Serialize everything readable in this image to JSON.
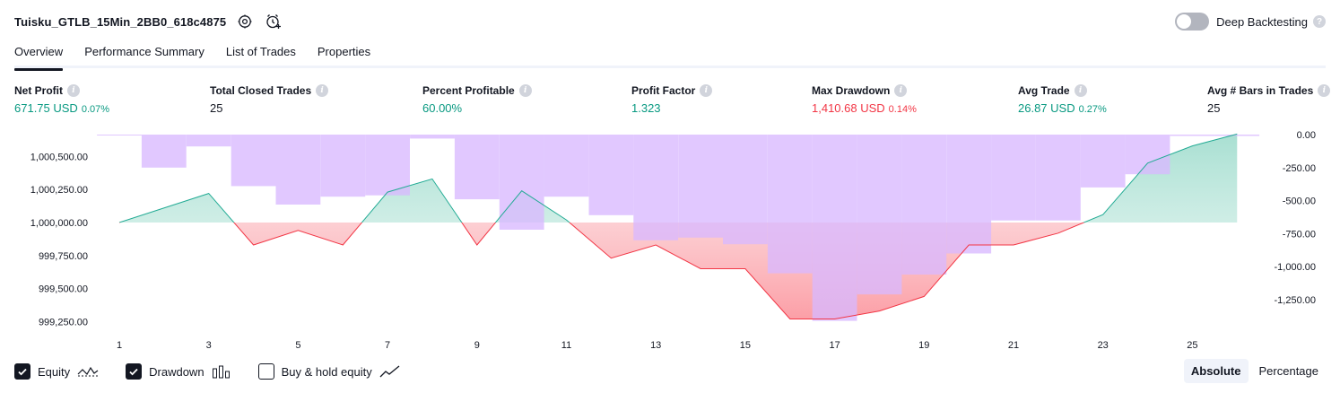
{
  "header": {
    "title": "Tuisku_GTLB_15Min_2BB0_618c4875",
    "deep_backtesting_label": "Deep Backtesting",
    "help_glyph": "?"
  },
  "tabs": [
    {
      "label": "Overview",
      "active": true
    },
    {
      "label": "Performance Summary",
      "active": false
    },
    {
      "label": "List of Trades",
      "active": false
    },
    {
      "label": "Properties",
      "active": false
    }
  ],
  "metrics": [
    {
      "label": "Net Profit",
      "value": "671.75 USD",
      "sub": "0.07%",
      "tone": "pos"
    },
    {
      "label": "Total Closed Trades",
      "value": "25",
      "sub": "",
      "tone": "neu"
    },
    {
      "label": "Percent Profitable",
      "value": "60.00%",
      "sub": "",
      "tone": "pos"
    },
    {
      "label": "Profit Factor",
      "value": "1.323",
      "sub": "",
      "tone": "pos"
    },
    {
      "label": "Max Drawdown",
      "value": "1,410.68 USD",
      "sub": "0.14%",
      "tone": "neg"
    },
    {
      "label": "Avg Trade",
      "value": "26.87 USD",
      "sub": "0.27%",
      "tone": "pos"
    },
    {
      "label": "Avg # Bars in Trades",
      "value": "25",
      "sub": "",
      "tone": "neu"
    }
  ],
  "info_glyph": "i",
  "chart_data": {
    "type": "line",
    "equity": {
      "trade": [
        1,
        3,
        4,
        5,
        6,
        7,
        8,
        9,
        10,
        11,
        12,
        13,
        14,
        15,
        16,
        17,
        18,
        19,
        20,
        21,
        22,
        23,
        24,
        25,
        26
      ],
      "values": [
        1000000,
        1000220,
        999830,
        999940,
        999830,
        1000230,
        1000330,
        999830,
        1000240,
        1000020,
        999730,
        999830,
        999650,
        999650,
        999270,
        999270,
        999330,
        999440,
        999830,
        999830,
        999920,
        1000060,
        1000450,
        1000580,
        1000670
      ]
    },
    "drawdown": {
      "trade": [
        1,
        2,
        3,
        4,
        5,
        6,
        7,
        8,
        9,
        10,
        11,
        12,
        13,
        14,
        15,
        16,
        17,
        18,
        19,
        20,
        21,
        22,
        23,
        24,
        25,
        26
      ],
      "values": [
        -5,
        -250,
        -90,
        -390,
        -530,
        -470,
        -460,
        -30,
        -490,
        -720,
        -470,
        -610,
        -800,
        -780,
        -830,
        -1050,
        -1410,
        -1210,
        -1060,
        -900,
        -650,
        -650,
        -400,
        -300,
        -10,
        -10
      ]
    },
    "left_axis_ticks": [
      "1,000,500.00",
      "1,000,250.00",
      "1,000,000.00",
      "999,750.00",
      "999,500.00",
      "999,250.00"
    ],
    "left_axis_values": [
      1000500,
      1000250,
      1000000,
      999750,
      999500,
      999250
    ],
    "right_axis_ticks": [
      "0.00",
      "-250.00",
      "-500.00",
      "-750.00",
      "-1,000.00",
      "-1,250.00"
    ],
    "right_axis_values": [
      0,
      -250,
      -500,
      -750,
      -1000,
      -1250
    ],
    "x_ticks": [
      "1",
      "3",
      "5",
      "7",
      "9",
      "11",
      "13",
      "15",
      "17",
      "19",
      "21",
      "23",
      "25"
    ],
    "x_tick_values": [
      1,
      3,
      5,
      7,
      9,
      11,
      13,
      15,
      17,
      19,
      21,
      23,
      25
    ],
    "colors": {
      "equity_up_line": "#22ab94",
      "equity_down_line": "#f23645",
      "equity_up_fill": "#bfe8de",
      "equity_down_fill": "#fdc0c4",
      "drawdown_bar": "#d9b8ff"
    }
  },
  "legend": [
    {
      "label": "Equity",
      "checked": true,
      "icon": "equity-line-icon"
    },
    {
      "label": "Drawdown",
      "checked": true,
      "icon": "bars-icon"
    },
    {
      "label": "Buy & hold equity",
      "checked": false,
      "icon": "trend-line-icon"
    }
  ],
  "mode": {
    "absolute_label": "Absolute",
    "percentage_label": "Percentage",
    "active": "absolute"
  }
}
